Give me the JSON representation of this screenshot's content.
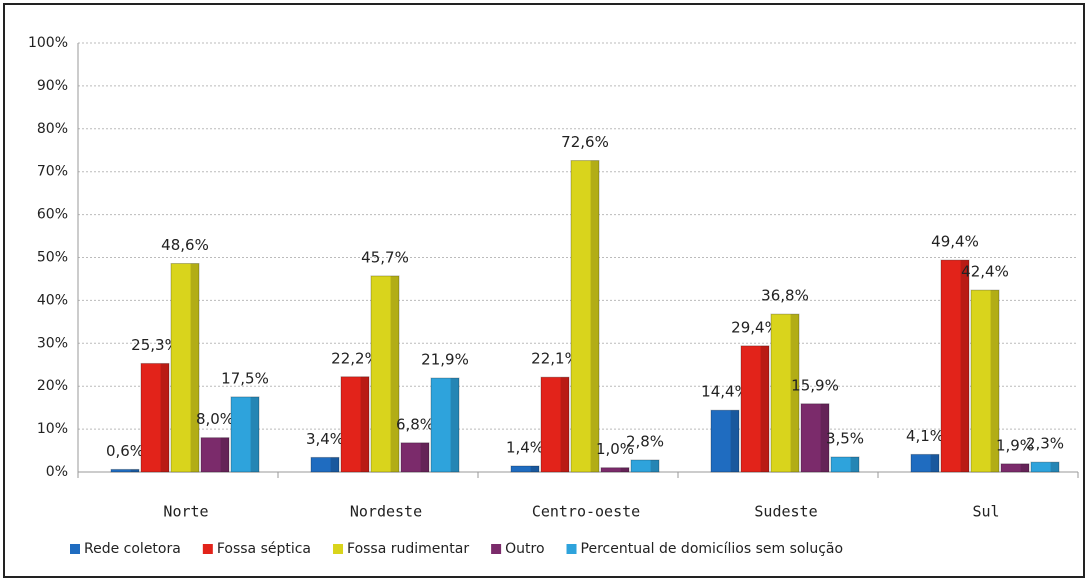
{
  "chart_data": {
    "type": "bar",
    "categories": [
      "Norte",
      "Nordeste",
      "Centro-oeste",
      "Sudeste",
      "Sul"
    ],
    "series": [
      {
        "name": "Rede coletora",
        "color": "#1f6cc0",
        "values": [
          0.6,
          3.4,
          1.4,
          14.4,
          4.1
        ],
        "value_labels": [
          "0,6%",
          "3,4%",
          "1,4%",
          "14,4%",
          "4,1%"
        ]
      },
      {
        "name": "Fossa séptica",
        "color": "#e2231a",
        "values": [
          25.3,
          22.2,
          22.1,
          29.4,
          49.4
        ],
        "value_labels": [
          "25,3%",
          "22,2%",
          "22,1%",
          "29,4%",
          "49,4%"
        ]
      },
      {
        "name": "Fossa rudimentar",
        "color": "#d9d41c",
        "values": [
          48.6,
          45.7,
          72.6,
          36.8,
          42.4
        ],
        "value_labels": [
          "48,6%",
          "45,7%",
          "72,6%",
          "36,8%",
          "42,4%"
        ]
      },
      {
        "name": "Outro",
        "color": "#7b2b6b",
        "values": [
          8.0,
          6.8,
          1.0,
          15.9,
          1.9
        ],
        "value_labels": [
          "8,0%",
          "6,8%",
          "1,0%",
          "15,9%",
          "1,9%"
        ]
      },
      {
        "name": "Percentual de domicílios sem solução",
        "color": "#2ea3dc",
        "values": [
          17.5,
          21.9,
          2.8,
          3.5,
          2.3
        ],
        "value_labels": [
          "17,5%",
          "21,9%",
          "2,8%",
          "3,5%",
          "2,3%"
        ]
      }
    ],
    "ylim": [
      0,
      100
    ],
    "yticks": [
      {
        "value": 0,
        "label": "0%"
      },
      {
        "value": 10,
        "label": "10%"
      },
      {
        "value": 20,
        "label": "20%"
      },
      {
        "value": 30,
        "label": "30%"
      },
      {
        "value": 40,
        "label": "40%"
      },
      {
        "value": 50,
        "label": "50%"
      },
      {
        "value": 60,
        "label": "60%"
      },
      {
        "value": 70,
        "label": "70%"
      },
      {
        "value": 80,
        "label": "80%"
      },
      {
        "value": 90,
        "label": "90%"
      },
      {
        "value": 100,
        "label": "100%"
      }
    ],
    "grid": true,
    "legend": "bottom"
  }
}
